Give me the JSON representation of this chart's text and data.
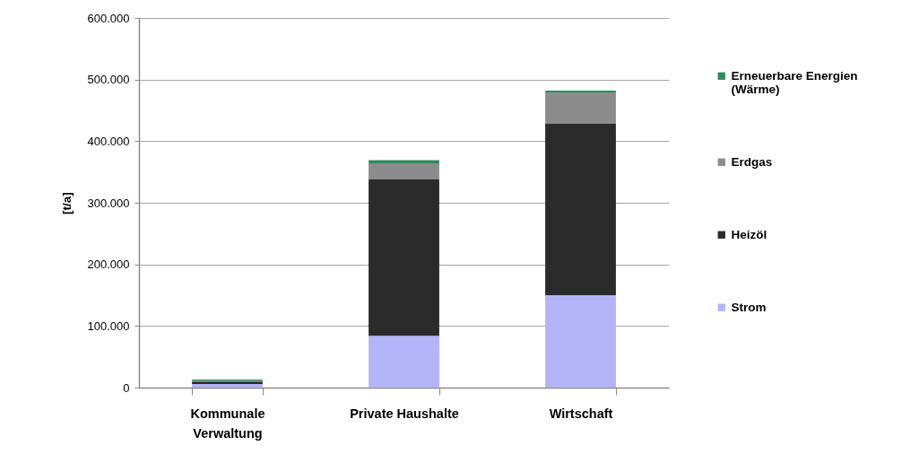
{
  "chart_data": {
    "type": "bar",
    "stacked": true,
    "ylabel": "[t/a]",
    "categories": [
      "Kommunale Verwaltung",
      "Private Haushalte",
      "Wirtschaft"
    ],
    "series": [
      {
        "name": "Strom",
        "color": "#b4b4f8",
        "values": [
          6000,
          84000,
          150000
        ]
      },
      {
        "name": "Heizöl",
        "color": "#2b2b2b",
        "values": [
          4000,
          254000,
          278000
        ]
      },
      {
        "name": "Erdgas",
        "color": "#8c8c8c",
        "values": [
          1000,
          26000,
          51000
        ]
      },
      {
        "name": "Erneuerbare Energien (Wärme)",
        "color": "#2e8b5e",
        "values": [
          2000,
          5000,
          3000
        ]
      }
    ],
    "ylim": [
      0,
      600000
    ],
    "yticks": [
      0,
      {
        "value": 100000,
        "label": "100.000"
      },
      {
        "value": 200000,
        "label": "200.000"
      },
      {
        "value": 300000,
        "label": "300.000"
      },
      {
        "value": 400000,
        "label": "400.000"
      },
      {
        "value": 500000,
        "label": "500.000"
      },
      {
        "value": 600000,
        "label": "600.000"
      }
    ],
    "grid": "y",
    "legend": "right"
  }
}
